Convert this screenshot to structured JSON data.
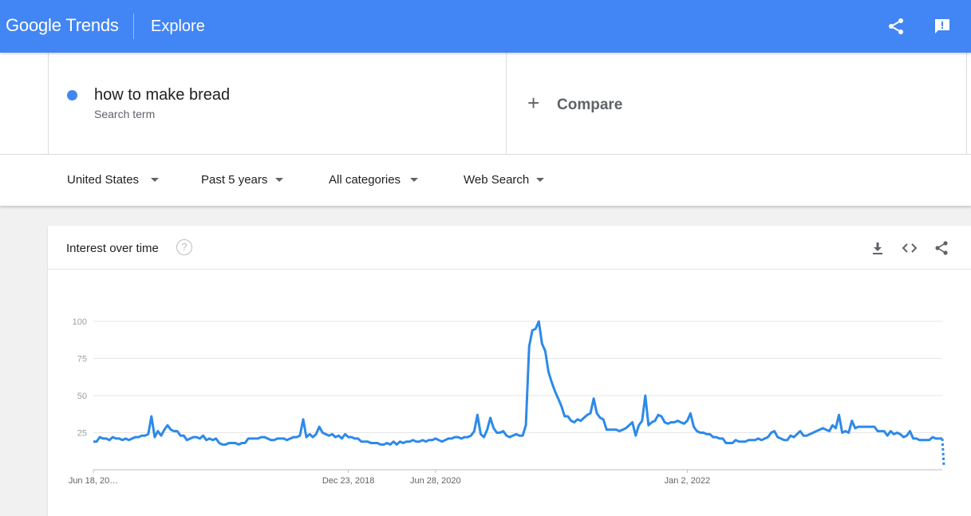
{
  "header": {
    "logo_google": "Google",
    "logo_trends": "Trends",
    "section": "Explore",
    "icons": [
      "share-icon",
      "feedback-icon"
    ],
    "color": "#4285f4"
  },
  "search": {
    "term": "how to make bread",
    "term_type": "Search term",
    "term_color": "#4285f4",
    "compare_label": "Compare"
  },
  "filters": {
    "region": "United States",
    "time": "Past 5 years",
    "category": "All categories",
    "property": "Web Search"
  },
  "card": {
    "title": "Interest over time",
    "icons": [
      "help-icon",
      "download-icon",
      "embed-icon",
      "share-icon"
    ]
  },
  "chart_data": {
    "type": "line",
    "title": "",
    "xlabel": "",
    "ylabel": "",
    "ylim": [
      0,
      100
    ],
    "yticks": [
      25,
      50,
      75,
      100
    ],
    "xticks": [
      {
        "label": "Jun 18, 20…",
        "index": 0
      },
      {
        "label": "Dec 23, 2018",
        "index": 79
      },
      {
        "label": "Jun 28, 2020",
        "index": 106
      },
      {
        "label": "Jan 2, 2022",
        "index": 184
      }
    ],
    "grid": true,
    "color": "#2d8ae8",
    "series": [
      {
        "values": [
          19,
          19,
          22,
          21,
          21,
          20,
          22,
          21,
          21,
          20,
          21,
          20,
          21,
          22,
          22,
          23,
          23,
          24,
          36,
          22,
          26,
          23,
          27,
          30,
          27,
          26,
          26,
          23,
          23,
          20,
          21,
          22,
          22,
          21,
          23,
          20,
          21,
          20,
          21,
          18,
          17,
          17,
          18,
          18,
          18,
          17,
          18,
          18,
          21,
          21,
          21,
          21,
          22,
          22,
          21,
          20,
          20,
          21,
          21,
          21,
          20,
          21,
          22,
          22,
          23,
          34,
          22,
          24,
          22,
          24,
          29,
          25,
          24,
          23,
          24,
          22,
          23,
          21,
          24,
          22,
          22,
          21,
          21,
          19,
          19,
          19,
          18,
          18,
          18,
          17,
          17,
          18,
          17,
          19,
          17,
          19,
          18,
          19,
          19,
          20,
          19,
          19,
          20,
          19,
          20,
          20,
          21,
          20,
          19,
          20,
          21,
          21,
          22,
          22,
          21,
          22,
          22,
          23,
          26,
          37,
          24,
          22,
          27,
          35,
          28,
          25,
          25,
          26,
          23,
          22,
          23,
          24,
          23,
          23,
          30,
          83,
          94,
          95,
          100,
          85,
          80,
          66,
          59,
          53,
          48,
          43,
          36,
          36,
          33,
          32,
          34,
          33,
          35,
          37,
          38,
          48,
          38,
          35,
          34,
          27,
          27,
          27,
          27,
          26,
          27,
          28,
          30,
          32,
          23,
          30,
          33,
          50,
          30,
          32,
          33,
          37,
          36,
          32,
          31,
          32,
          32,
          33,
          32,
          31,
          33,
          38,
          29,
          26,
          25,
          25,
          24,
          24,
          22,
          22,
          21,
          21,
          18,
          18,
          18,
          20,
          19,
          19,
          19,
          20,
          20,
          20,
          21,
          20,
          21,
          22,
          25,
          26,
          22,
          21,
          20,
          20,
          23,
          22,
          24,
          26,
          23,
          23,
          24,
          25,
          26,
          27,
          28,
          27,
          26,
          30,
          28,
          37,
          25,
          26,
          25,
          33,
          28,
          29,
          29,
          29,
          29,
          29,
          29,
          26,
          26,
          26,
          23,
          26,
          24,
          25,
          24,
          22,
          23,
          26,
          21,
          21,
          20,
          20,
          20,
          20,
          22,
          21,
          21,
          21
        ]
      },
      {
        "name": "partial",
        "values": [
          21,
          3
        ]
      }
    ]
  }
}
